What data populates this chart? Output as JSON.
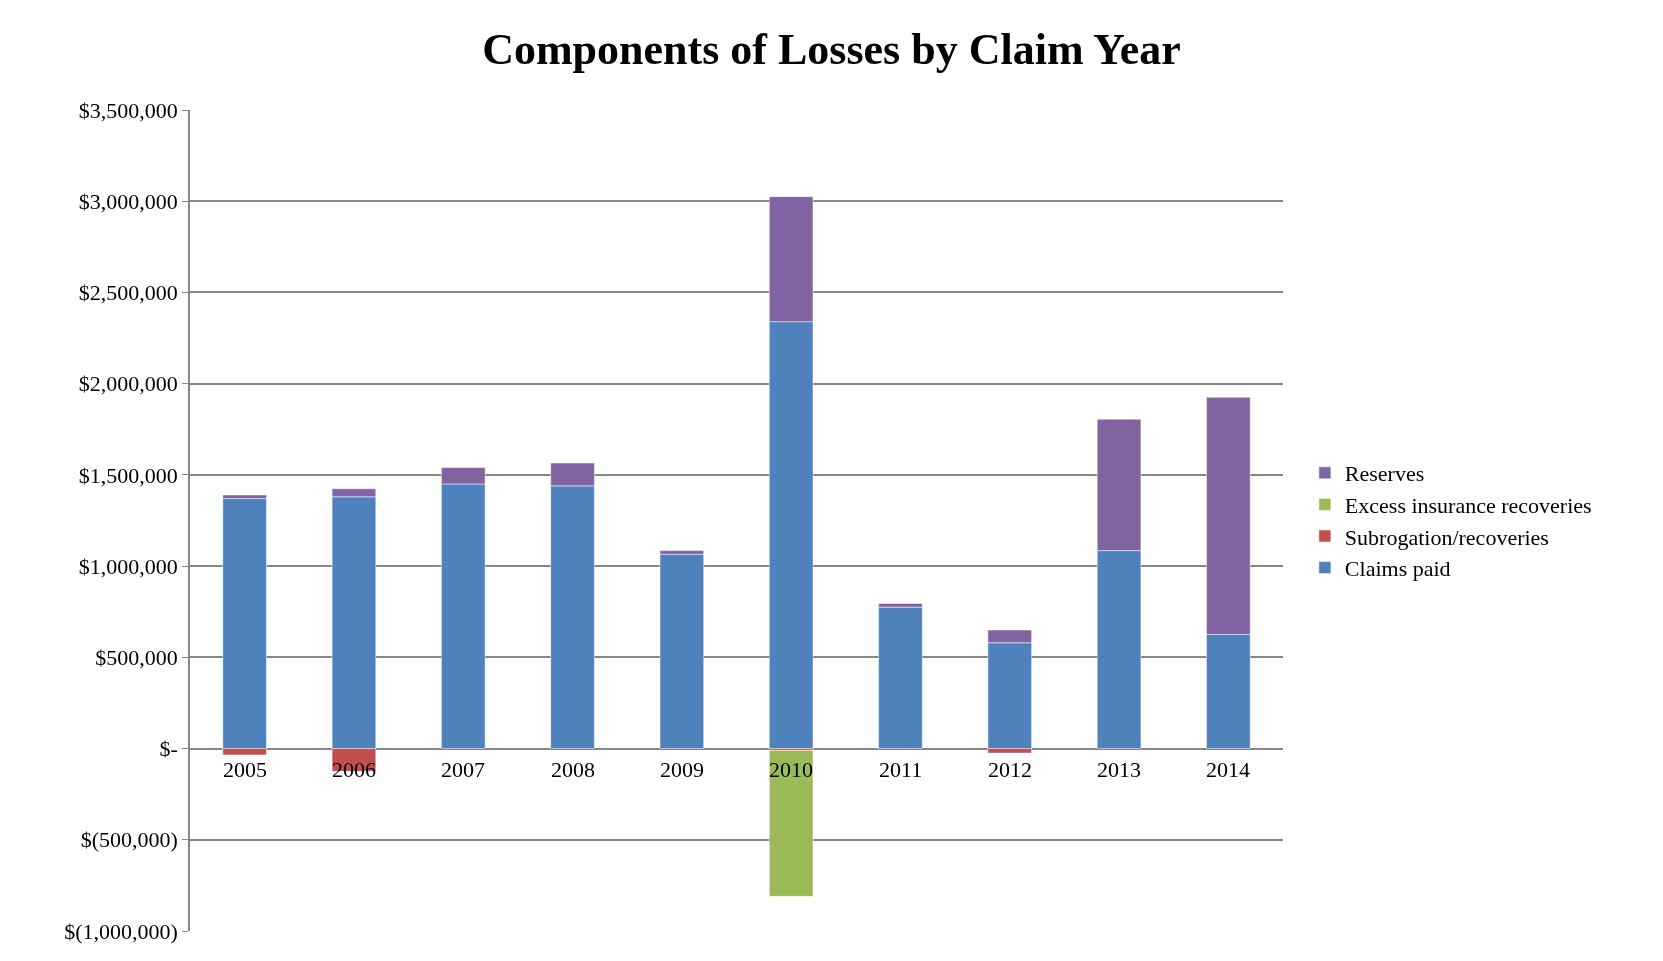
{
  "chart_data": {
    "type": "bar",
    "title": "Components of Losses by Claim Year",
    "categories": [
      "2005",
      "2006",
      "2007",
      "2008",
      "2009",
      "2010",
      "2011",
      "2012",
      "2013",
      "2014"
    ],
    "stacked": true,
    "series": [
      {
        "name": "Claims paid",
        "color": "#4f81bd",
        "values": [
          1370000,
          1380000,
          1450000,
          1440000,
          1065000,
          2340000,
          775000,
          580000,
          1085000,
          625000
        ]
      },
      {
        "name": "Subrogation/recoveries",
        "color": "#c0504d",
        "values": [
          -35000,
          -125000,
          null,
          null,
          null,
          -10000,
          null,
          -25000,
          null,
          null
        ]
      },
      {
        "name": "Excess insurance recoveries",
        "color": "#9bbb59",
        "values": [
          null,
          null,
          null,
          null,
          null,
          -800000,
          null,
          null,
          null,
          null
        ]
      },
      {
        "name": "Reserves",
        "color": "#8064a2",
        "values": [
          20000,
          44000,
          90000,
          125000,
          20000,
          685000,
          20000,
          70000,
          720000,
          1300000
        ]
      }
    ],
    "ylim": [
      -1000000,
      3500000
    ],
    "yticks": [
      {
        "value": -1000000,
        "label": "$(1,000,000)"
      },
      {
        "value": -500000,
        "label": "$(500,000)"
      },
      {
        "value": 0,
        "label": "$-"
      },
      {
        "value": 500000,
        "label": "$500,000"
      },
      {
        "value": 1000000,
        "label": "$1,000,000"
      },
      {
        "value": 1500000,
        "label": "$1,500,000"
      },
      {
        "value": 2000000,
        "label": "$2,000,000"
      },
      {
        "value": 2500000,
        "label": "$2,500,000"
      },
      {
        "value": 3000000,
        "label": "$3,000,000"
      },
      {
        "value": 3500000,
        "label": "$3,500,000"
      }
    ],
    "grid": "y",
    "legend": "right"
  }
}
